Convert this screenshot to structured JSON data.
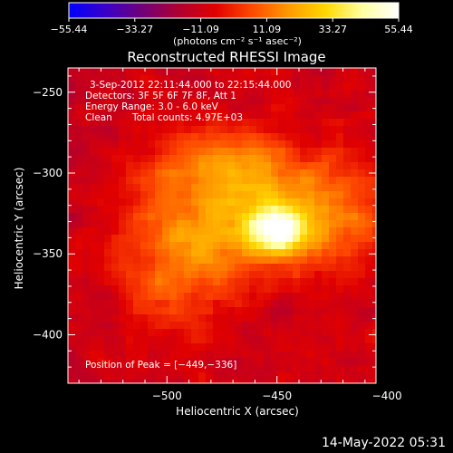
{
  "colorbar": {
    "tick_labels": [
      "−55.44",
      "−33.27",
      "−11.09",
      "11.09",
      "33.27",
      "55.44"
    ],
    "min": -55.44,
    "max": 55.44,
    "colormap": [
      "#0000ff",
      "#3a00c8",
      "#70007a",
      "#b00030",
      "#e00000",
      "#ff4a00",
      "#ff9a00",
      "#ffd800",
      "#ffffa0",
      "#ffffff"
    ],
    "units_label": "(photons cm⁻² s⁻¹ asec⁻²)"
  },
  "chart_data": {
    "type": "heatmap",
    "title": "Reconstructed RHESSI Image",
    "xlabel": "Heliocentric X (arcsec)",
    "ylabel": "Heliocentric Y (arcsec)",
    "xlim": [
      -545,
      -405
    ],
    "ylim": [
      -430,
      -235
    ],
    "x_ticks": [
      -500,
      -450,
      -400
    ],
    "y_ticks": [
      -250,
      -300,
      -350,
      -400
    ],
    "x_tick_labels": [
      "−500",
      "−450",
      "−400"
    ],
    "y_tick_labels": [
      "−250",
      "−300",
      "−350",
      "−400"
    ],
    "peak": [
      -449,
      -336
    ],
    "annotations": {
      "time_range": "3-Sep-2012 22:11:44.000 to 22:15:44.000",
      "detectors": "Detectors: 3F 5F 6F 7F 8F, Att 1",
      "energy": "Energy Range: 3.0 - 6.0 keV",
      "method": "Clean",
      "counts": "Total counts: 4.97E+03",
      "peak_text": "Position of Peak = [−449,−336]"
    }
  },
  "timestamp": "14-May-2022 05:31"
}
